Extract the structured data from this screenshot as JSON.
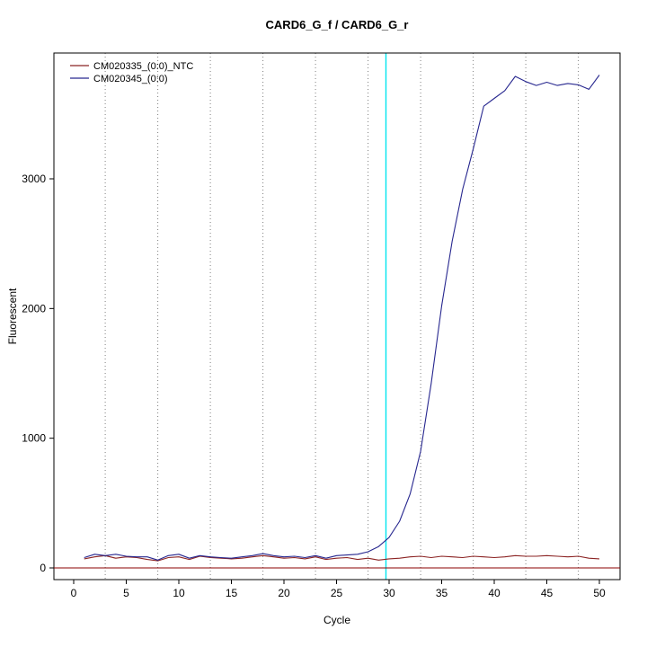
{
  "title": "CARD6_G_f / CARD6_G_r",
  "chart_data": {
    "type": "line",
    "title": "CARD6_G_f / CARD6_G_r",
    "xlabel": "Cycle",
    "ylabel": "Fluorescent",
    "xlim": [
      0,
      50
    ],
    "ylim": [
      -100,
      3970
    ],
    "x_ticks": [
      0,
      5,
      10,
      15,
      20,
      25,
      30,
      35,
      40,
      45,
      50
    ],
    "y_ticks": [
      0,
      1000,
      2000,
      3000
    ],
    "grid": {
      "vertical_dotted_at": [
        3,
        8,
        13,
        18,
        23,
        28,
        33,
        38,
        43,
        48
      ],
      "color": "#808080"
    },
    "threshold_line": {
      "y": 0,
      "color": "#8b0000"
    },
    "ct_line": {
      "x": 29.7,
      "color": "#00e5ee"
    },
    "legend_position": "top-left",
    "x": [
      1,
      2,
      3,
      4,
      5,
      6,
      7,
      8,
      9,
      10,
      11,
      12,
      13,
      14,
      15,
      16,
      17,
      18,
      19,
      20,
      21,
      22,
      23,
      24,
      25,
      26,
      27,
      28,
      29,
      30,
      31,
      32,
      33,
      34,
      35,
      36,
      37,
      38,
      39,
      40,
      41,
      42,
      43,
      44,
      45,
      46,
      47,
      48,
      49,
      50
    ],
    "series": [
      {
        "name": "CM020335_(0:0)_NTC",
        "color": "#8b2323",
        "values": [
          70,
          85,
          95,
          75,
          85,
          80,
          65,
          55,
          80,
          85,
          65,
          90,
          80,
          75,
          70,
          75,
          85,
          95,
          85,
          75,
          80,
          70,
          85,
          65,
          75,
          80,
          65,
          75,
          60,
          70,
          75,
          85,
          90,
          80,
          90,
          85,
          80,
          90,
          85,
          80,
          85,
          95,
          90,
          90,
          95,
          90,
          85,
          90,
          75,
          70
        ]
      },
      {
        "name": "CM020345_(0:0)",
        "color": "#27278f",
        "values": [
          80,
          105,
          95,
          105,
          90,
          85,
          85,
          60,
          95,
          105,
          75,
          95,
          85,
          80,
          75,
          85,
          95,
          110,
          95,
          85,
          90,
          80,
          95,
          75,
          95,
          100,
          105,
          125,
          165,
          235,
          360,
          570,
          900,
          1420,
          2020,
          2520,
          2920,
          3230,
          3560,
          3620,
          3680,
          3790,
          3750,
          3720,
          3745,
          3720,
          3735,
          3725,
          3690,
          3800
        ]
      }
    ]
  }
}
